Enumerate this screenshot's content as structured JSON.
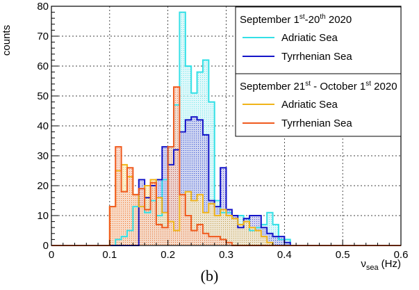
{
  "chart_data": {
    "type": "histogram",
    "ylabel": "counts",
    "xlabel_main": "ν",
    "xlabel_sub": "sea",
    "xlabel_unit": "(Hz)",
    "xlim": [
      0,
      0.6
    ],
    "ylim": [
      0,
      80
    ],
    "grid": true,
    "x_ticks": [
      "0",
      "0.1",
      "0.2",
      "0.3",
      "0.4",
      "0.5",
      "0.6"
    ],
    "y_ticks": [
      "0",
      "10",
      "20",
      "30",
      "40",
      "50",
      "60",
      "70",
      "80"
    ],
    "bin_width": 0.01,
    "legend_groups": [
      {
        "title_main": "September 1",
        "title_sup1": "st",
        "title_mid": "-20",
        "title_sup2": "th",
        "title_end": " 2020"
      },
      {
        "title_main": "September 21",
        "title_sup1": "st",
        "title_mid": " - October 1",
        "title_sup2": "st",
        "title_end": " 2020"
      }
    ],
    "series": [
      {
        "group": 0,
        "name": "Adriatic Sea",
        "color": "#33e0e6",
        "x_start": [
          0.09,
          0.1,
          0.11,
          0.12,
          0.13,
          0.14,
          0.15,
          0.16,
          0.17,
          0.18,
          0.19,
          0.2,
          0.21,
          0.22,
          0.23,
          0.24,
          0.25,
          0.26,
          0.27,
          0.28,
          0.29,
          0.3,
          0.31,
          0.32,
          0.33,
          0.34,
          0.35,
          0.36,
          0.37,
          0.38,
          0.39,
          0.4,
          0.41
        ],
        "values": [
          0,
          0,
          2,
          3,
          5,
          13,
          13,
          11,
          15,
          10,
          22,
          33,
          47,
          78,
          60,
          51,
          58,
          62,
          48,
          15,
          11,
          11,
          10,
          10,
          9,
          5,
          6,
          7,
          11,
          7,
          2,
          2,
          0
        ]
      },
      {
        "group": 0,
        "name": "Tyrrhenian Sea",
        "color": "#1414c8",
        "x_start": [
          0.09,
          0.1,
          0.11,
          0.12,
          0.13,
          0.14,
          0.15,
          0.16,
          0.17,
          0.18,
          0.19,
          0.2,
          0.21,
          0.22,
          0.23,
          0.24,
          0.25,
          0.26,
          0.27,
          0.28,
          0.29,
          0.3,
          0.31,
          0.32,
          0.33,
          0.34,
          0.35,
          0.36,
          0.37,
          0.38,
          0.39,
          0.4,
          0.41
        ],
        "values": [
          0,
          0,
          0,
          0,
          0,
          0,
          22,
          16,
          20,
          22,
          33,
          27,
          32,
          38,
          42,
          43,
          42,
          37,
          15,
          13,
          26,
          12,
          10,
          6,
          9,
          10,
          10,
          6,
          4,
          3,
          3,
          1,
          0
        ]
      },
      {
        "group": 1,
        "name": "Adriatic Sea",
        "color": "#f0b419",
        "x_start": [
          0.09,
          0.1,
          0.11,
          0.12,
          0.13,
          0.14,
          0.15,
          0.16,
          0.17,
          0.18,
          0.19,
          0.2,
          0.21,
          0.22,
          0.23,
          0.24,
          0.25,
          0.26,
          0.27,
          0.28,
          0.29,
          0.3,
          0.31,
          0.32,
          0.33,
          0.34,
          0.35,
          0.36,
          0.37,
          0.38
        ],
        "values": [
          0,
          13,
          25,
          27,
          23,
          17,
          13,
          20,
          22,
          16,
          11,
          8,
          5,
          17,
          18,
          15,
          17,
          11,
          14,
          10,
          12,
          10,
          9,
          7,
          8,
          6,
          5,
          3,
          1,
          0
        ]
      },
      {
        "group": 1,
        "name": "Tyrrhenian Sea",
        "color": "#f05a1e",
        "x_start": [
          0.09,
          0.1,
          0.11,
          0.12,
          0.13,
          0.14,
          0.15,
          0.16,
          0.17,
          0.18,
          0.19,
          0.2,
          0.21,
          0.22,
          0.23,
          0.24,
          0.25,
          0.26,
          0.27,
          0.28,
          0.29,
          0.3,
          0.31
        ],
        "values": [
          0,
          13,
          33,
          18,
          26,
          17,
          19,
          12,
          21,
          7,
          6,
          33,
          53,
          17,
          10,
          5,
          7,
          4,
          3,
          3,
          2,
          1,
          0
        ]
      }
    ]
  },
  "caption": "(b)"
}
